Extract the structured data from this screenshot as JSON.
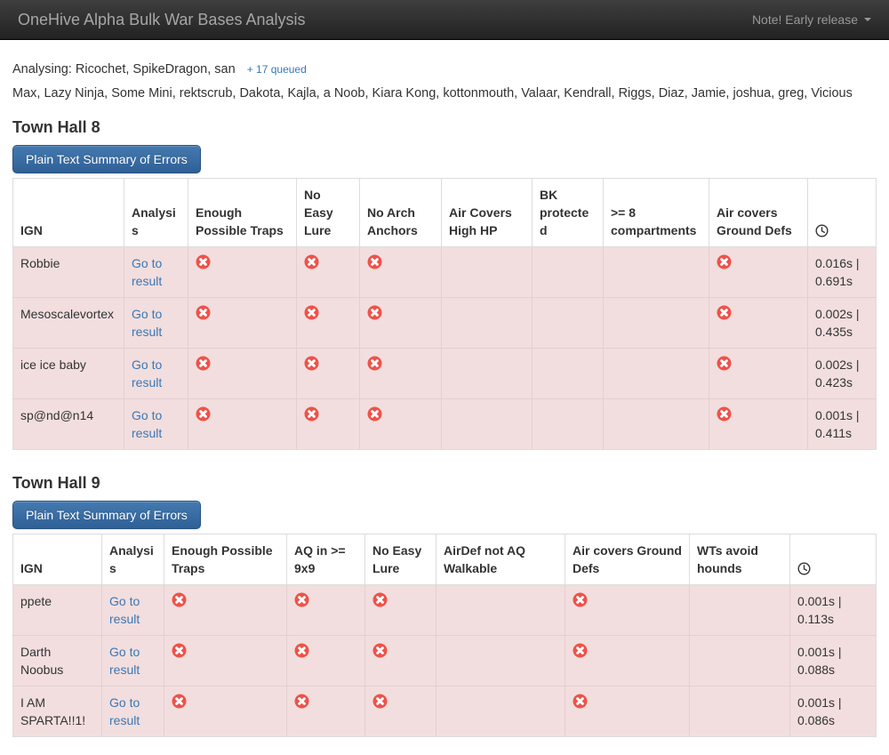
{
  "navbar": {
    "brand": "OneHive Alpha Bulk War Bases Analysis",
    "menu_label": "Note! Early release"
  },
  "status": {
    "analysing_line": "Analysing: Ricochet, SpikeDragon, san",
    "queued_link": "+ 17 queued",
    "queue_list": "Max, Lazy Ninja, Some Mini, rektscrub, Dakota, Kajla, a Noob, Kiara Kong, kottonmouth, Valaar, Kendrall, Riggs, Diaz, Jamie, joshua, greg, Vicious"
  },
  "icons": {
    "error": "times-circle",
    "clock": "clock",
    "caret": "caret-down"
  },
  "colors": {
    "error_red": "#ee524a",
    "row_danger_bg": "#f2dede",
    "link_blue": "#3a77b5",
    "button_blue": "#3a70a8"
  },
  "sections": [
    {
      "title": "Town Hall 8",
      "button_label": "Plain Text Summary of Errors",
      "columns": [
        "IGN",
        "Analysis",
        "Enough Possible Traps",
        "No Easy Lure",
        "No Arch Anchors",
        "Air Covers High HP",
        "BK protected",
        ">= 8 compartments",
        "Air covers Ground Defs"
      ],
      "rows": [
        {
          "ign": "Robbie",
          "analysis": "Go to result",
          "flags": [
            true,
            true,
            true,
            false,
            false,
            false,
            true
          ],
          "time": "0.016s | 0.691s"
        },
        {
          "ign": "Mesoscalevortex",
          "analysis": "Go to result",
          "flags": [
            true,
            true,
            true,
            false,
            false,
            false,
            true
          ],
          "time": "0.002s | 0.435s"
        },
        {
          "ign": "ice ice baby",
          "analysis": "Go to result",
          "flags": [
            true,
            true,
            true,
            false,
            false,
            false,
            true
          ],
          "time": "0.002s | 0.423s"
        },
        {
          "ign": "sp@nd@n14",
          "analysis": "Go to result",
          "flags": [
            true,
            true,
            true,
            false,
            false,
            false,
            true
          ],
          "time": "0.001s | 0.411s"
        }
      ]
    },
    {
      "title": "Town Hall 9",
      "button_label": "Plain Text Summary of Errors",
      "columns": [
        "IGN",
        "Analysis",
        "Enough Possible Traps",
        "AQ in >= 9x9",
        "No Easy Lure",
        "AirDef not AQ Walkable",
        "Air covers Ground Defs",
        "WTs avoid hounds"
      ],
      "rows": [
        {
          "ign": "ppete",
          "analysis": "Go to result",
          "flags": [
            true,
            true,
            true,
            false,
            true,
            false
          ],
          "time": "0.001s | 0.113s"
        },
        {
          "ign": "Darth Noobus",
          "analysis": "Go to result",
          "flags": [
            true,
            true,
            true,
            false,
            true,
            false
          ],
          "time": "0.001s | 0.088s"
        },
        {
          "ign": "I AM SPARTA!!1!",
          "analysis": "Go to result",
          "flags": [
            true,
            true,
            true,
            false,
            true,
            false
          ],
          "time": "0.001s | 0.086s"
        }
      ]
    }
  ]
}
